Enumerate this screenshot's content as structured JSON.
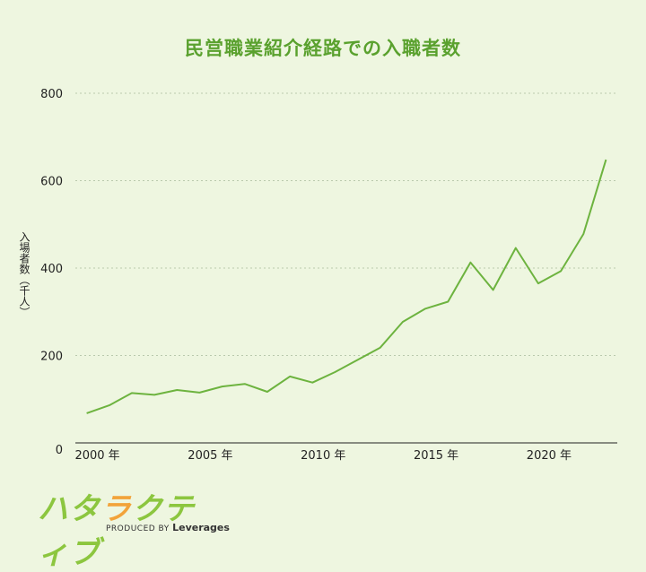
{
  "title": "民営職業紹介経路での入職者数",
  "logo": {
    "part1": "ハタ",
    "part2": "ラ",
    "part3": "クティブ",
    "tagline": "PRODUCED BY",
    "brand": "Leverages"
  },
  "colors": {
    "background": "#eef6e0",
    "line": "#6db33f",
    "title": "#5aa12e",
    "grid": "#b9c9ad"
  },
  "chart_data": {
    "type": "line",
    "title": "民営職業紹介経路での入職者数",
    "ylabel": "入場者数（千人）",
    "xlabel": "",
    "ylim": [
      0,
      800
    ],
    "yticks": [
      "0",
      "200",
      "400",
      "600",
      "800"
    ],
    "xlim": [
      1999.5,
      2023.5
    ],
    "xticks": [
      {
        "value": 2000,
        "label": "2000 年"
      },
      {
        "value": 2005,
        "label": "2005 年"
      },
      {
        "value": 2010,
        "label": "2010 年"
      },
      {
        "value": 2015,
        "label": "2015 年"
      },
      {
        "value": 2020,
        "label": "2020 年"
      }
    ],
    "grid": "horizontal-dotted",
    "x": [
      2000,
      2001,
      2002,
      2003,
      2004,
      2005,
      2006,
      2007,
      2008,
      2009,
      2010,
      2011,
      2012,
      2013,
      2014,
      2015,
      2016,
      2017,
      2018,
      2019,
      2020,
      2021,
      2022,
      2023
    ],
    "values": [
      68,
      86,
      114,
      110,
      121,
      115,
      129,
      135,
      117,
      152,
      138,
      162,
      190,
      218,
      277,
      307,
      323,
      413,
      350,
      446,
      365,
      393,
      478,
      648
    ]
  }
}
